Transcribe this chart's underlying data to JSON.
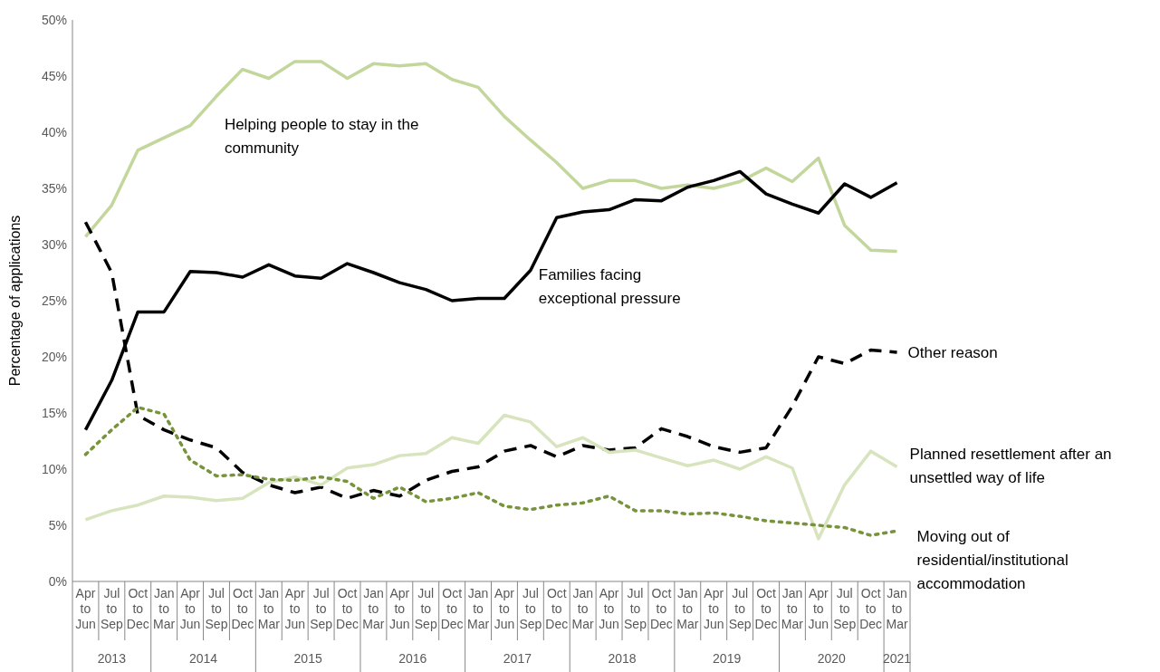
{
  "chart_data": {
    "type": "line",
    "ylabel": "Percentage of applications",
    "categories": [
      "Apr to Jun",
      "Jul to Sep",
      "Oct to Dec",
      "Jan to Mar",
      "Apr to Jun",
      "Jul to Sep",
      "Oct to Dec",
      "Jan to Mar",
      "Apr to Jun",
      "Jul to Sep",
      "Oct to Dec",
      "Jan to Mar",
      "Apr to Jun",
      "Jul to Sep",
      "Oct to Dec",
      "Jan to Mar",
      "Apr to Jun",
      "Jul to Sep",
      "Oct to Dec",
      "Jan to Mar",
      "Apr to Jun",
      "Jul to Sep",
      "Oct to Dec",
      "Jan to Mar",
      "Apr to Jun",
      "Jul to Sep",
      "Oct to Dec",
      "Jan to Mar",
      "Apr to Jun",
      "Jul to Sep",
      "Oct to Dec",
      "Jan to Mar"
    ],
    "annotations": [
      "2013",
      "2014",
      "2015",
      "2016",
      "2017",
      "2018",
      "2019",
      "2020",
      "2021"
    ],
    "ylim": [
      0,
      50
    ],
    "yticks": [
      {
        "value": 0,
        "label": "0%"
      },
      {
        "value": 5,
        "label": "5%"
      },
      {
        "value": 10,
        "label": "10%"
      },
      {
        "value": 15,
        "label": "15%"
      },
      {
        "value": 20,
        "label": "20%"
      },
      {
        "value": 25,
        "label": "25%"
      },
      {
        "value": 30,
        "label": "30%"
      },
      {
        "value": 35,
        "label": "35%"
      },
      {
        "value": 40,
        "label": "40%"
      },
      {
        "value": 45,
        "label": "45%"
      },
      {
        "value": 50,
        "label": "50%"
      }
    ],
    "grid": false,
    "marker": "none",
    "series": [
      {
        "name": "Helping people to stay in the community",
        "color": "#c3d69b",
        "line_style": "solid",
        "values": [
          30.7,
          33.5,
          38.4,
          39.5,
          40.6,
          43.2,
          45.6,
          44.8,
          46.3,
          46.3,
          44.8,
          46.1,
          45.9,
          46.1,
          44.7,
          44.0,
          41.4,
          39.3,
          37.3,
          35.0,
          35.7,
          35.7,
          35.0,
          35.3,
          35.0,
          35.6,
          36.8,
          35.6,
          37.7,
          31.7,
          29.5,
          29.4
        ]
      },
      {
        "name": "Families facing exceptional pressure",
        "color": "#000000",
        "line_style": "solid",
        "values": [
          13.5,
          17.9,
          24.0,
          24.0,
          27.6,
          27.5,
          27.1,
          28.2,
          27.2,
          27.0,
          28.3,
          27.5,
          26.6,
          26.0,
          25.0,
          25.2,
          25.2,
          27.7,
          32.4,
          32.9,
          33.1,
          34.0,
          33.9,
          35.1,
          35.7,
          36.5,
          34.5,
          33.6,
          32.8,
          35.4,
          34.2,
          35.5
        ]
      },
      {
        "name": "Other reason",
        "color": "#000000",
        "line_style": "dashed",
        "values": [
          32.0,
          27.5,
          14.8,
          13.5,
          12.6,
          11.9,
          9.7,
          8.6,
          7.9,
          8.4,
          7.4,
          8.1,
          7.6,
          9.0,
          9.8,
          10.2,
          11.6,
          12.1,
          11.1,
          12.1,
          11.7,
          11.9,
          13.6,
          12.9,
          12.0,
          11.5,
          11.9,
          15.6,
          20.0,
          19.4,
          20.6,
          20.4
        ]
      },
      {
        "name": "Planned resettlement after an unsettled way of life",
        "color": "#d7e4bd",
        "line_style": "solid",
        "values": [
          5.5,
          6.3,
          6.8,
          7.6,
          7.5,
          7.2,
          7.4,
          8.8,
          9.3,
          8.6,
          10.1,
          10.4,
          11.2,
          11.4,
          12.8,
          12.3,
          14.8,
          14.2,
          12.0,
          12.8,
          11.5,
          11.7,
          11.0,
          10.3,
          10.8,
          10.0,
          11.1,
          10.1,
          3.8,
          8.6,
          11.6,
          10.2
        ]
      },
      {
        "name": "Moving out of residential/institutional accommodation",
        "color": "#77933c",
        "line_style": "dotted",
        "values": [
          11.3,
          13.5,
          15.5,
          14.9,
          10.8,
          9.4,
          9.5,
          9.1,
          9.0,
          9.3,
          8.9,
          7.4,
          8.4,
          7.1,
          7.4,
          7.9,
          6.7,
          6.4,
          6.8,
          7.0,
          7.6,
          6.3,
          6.3,
          6.0,
          6.1,
          5.8,
          5.4,
          5.2,
          5.0,
          4.8,
          4.1,
          4.5
        ]
      }
    ]
  }
}
